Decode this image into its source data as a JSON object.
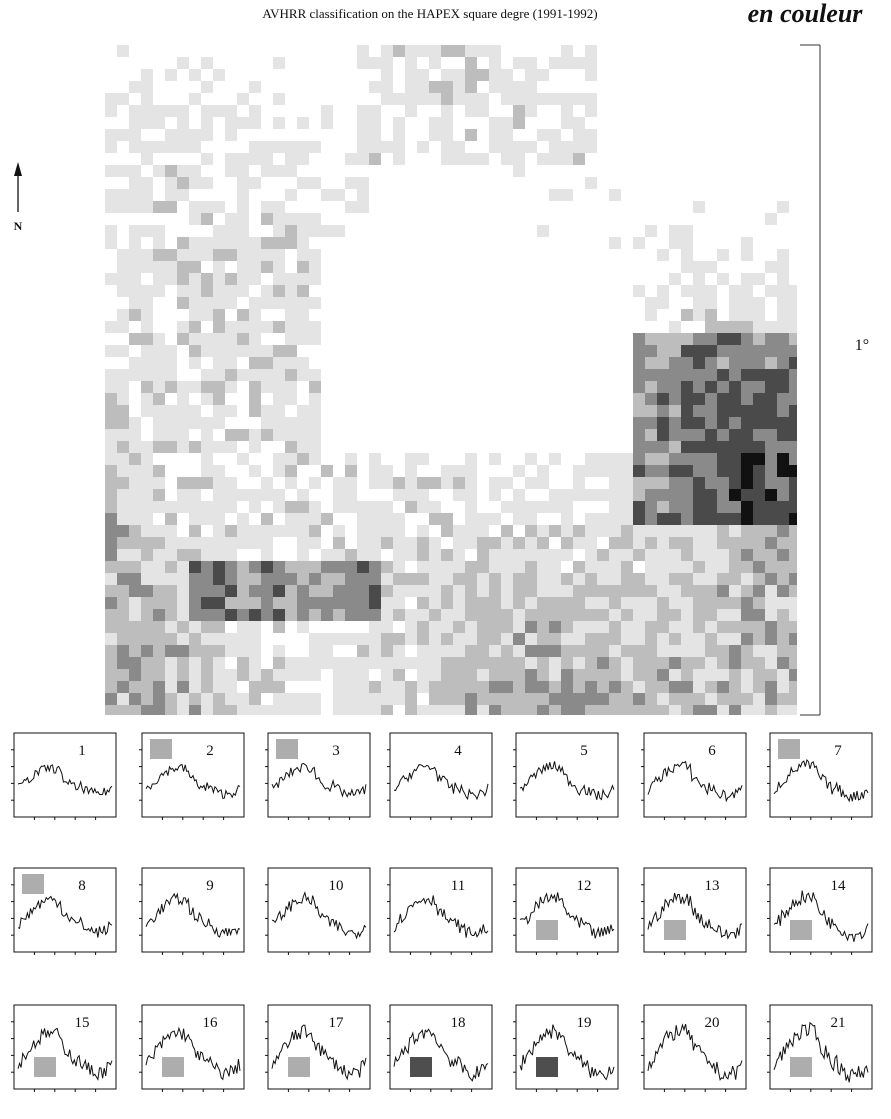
{
  "header": {
    "title": "AVHRR classification on the HAPEX square degre (1991-1992)",
    "annotation": "en couleur"
  },
  "map": {
    "north_label": "N",
    "scale_label": "1°"
  },
  "panels": [
    {
      "label": "1"
    },
    {
      "label": "2"
    },
    {
      "label": "3"
    },
    {
      "label": "4"
    },
    {
      "label": "5"
    },
    {
      "label": "6"
    },
    {
      "label": "7"
    },
    {
      "label": "8"
    },
    {
      "label": "9"
    },
    {
      "label": "10"
    },
    {
      "label": "11"
    },
    {
      "label": "12"
    },
    {
      "label": "13"
    },
    {
      "label": "14"
    },
    {
      "label": "15"
    },
    {
      "label": "16"
    },
    {
      "label": "17"
    },
    {
      "label": "18"
    },
    {
      "label": "19"
    },
    {
      "label": "20"
    },
    {
      "label": "21"
    }
  ]
}
